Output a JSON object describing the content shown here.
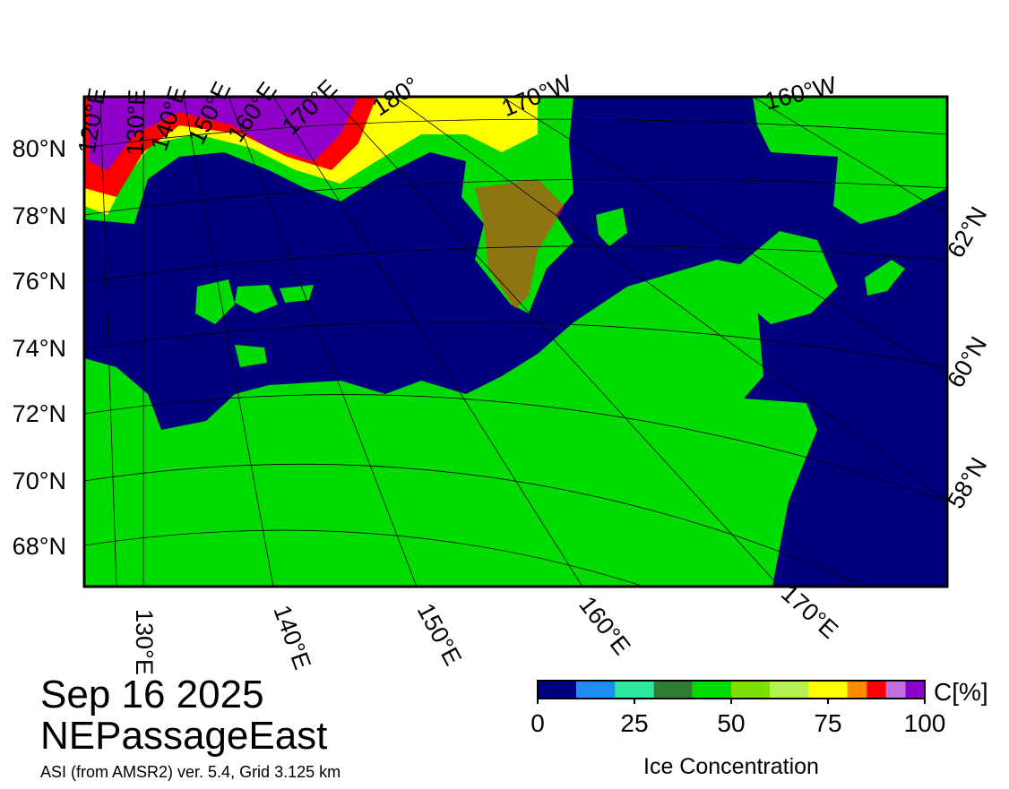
{
  "date": "Sep 16 2025",
  "region": "NEPassageEast",
  "credit": "ASI (from AMSR2) ver. 5.4,  Grid 3.125 km",
  "top_labels": [
    "120°E",
    "130°E",
    "140°E",
    "150°E",
    "160°E",
    "170°E",
    "180°",
    "170°W",
    "160°W"
  ],
  "left_labels": [
    "80°N",
    "78°N",
    "76°N",
    "74°N",
    "72°N",
    "70°N",
    "68°N"
  ],
  "right_labels": [
    "62°N",
    "60°N",
    "58°N"
  ],
  "bottom_labels": [
    "130°E",
    "140°E",
    "150°E",
    "160°E",
    "170°E"
  ],
  "colorbar": {
    "label": "Ice Concentration",
    "unit": "C[%]",
    "lim": [
      0,
      100
    ],
    "ticks": [
      0,
      25,
      50,
      75,
      100
    ],
    "bounds": [
      0,
      10,
      20,
      30,
      40,
      50,
      60,
      70,
      80,
      85,
      90,
      95,
      100
    ],
    "colors": [
      "#00007f",
      "#1e8cf0",
      "#2ee8a0",
      "#2e7d32",
      "#00dc00",
      "#7ce000",
      "#b4f050",
      "#ffff00",
      "#ff8c00",
      "#ff0000",
      "#c070e0",
      "#8c00c8"
    ]
  }
}
